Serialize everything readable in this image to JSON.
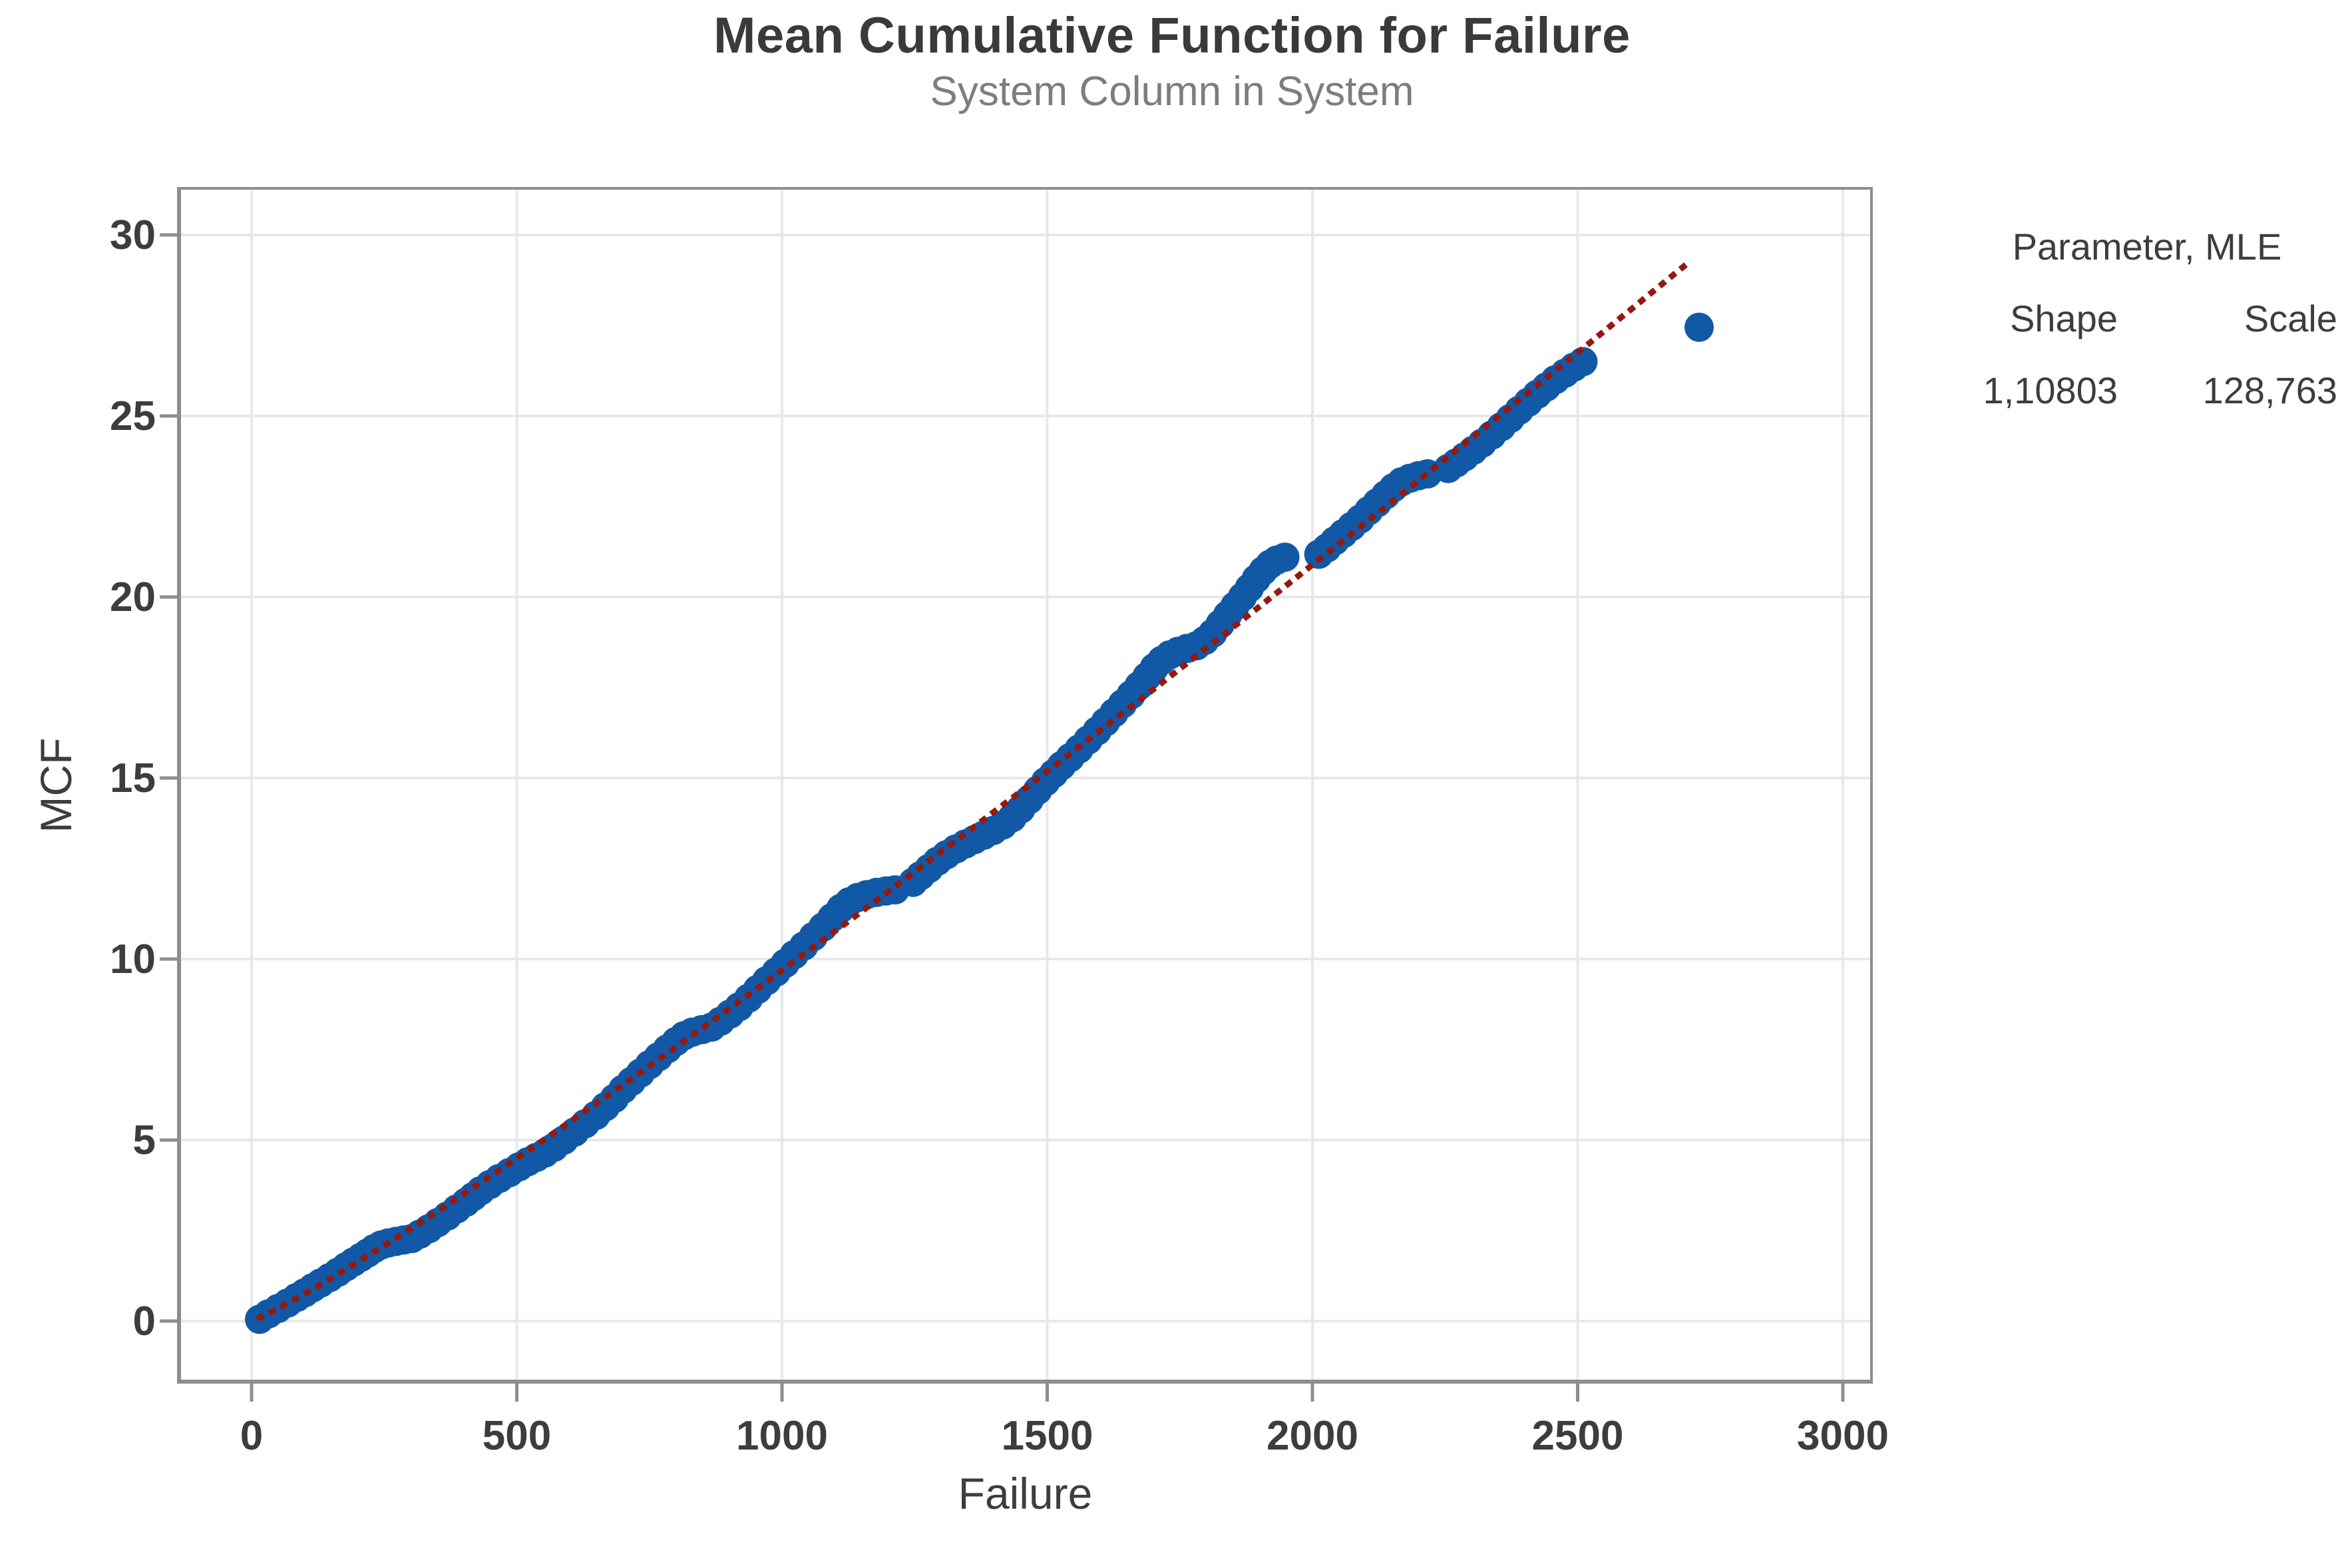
{
  "figure": {
    "title": "Mean Cumulative Function for Failure",
    "subtitle": "System Column in System"
  },
  "chart_data": {
    "type": "scatter",
    "title": "Mean Cumulative Function for Failure",
    "subtitle": "System Column in System",
    "xlabel": "Failure",
    "ylabel": "MCF",
    "xlim": [
      0,
      3000
    ],
    "ylim": [
      0,
      30
    ],
    "x_ticks": [
      0,
      500,
      1000,
      1500,
      2000,
      2500,
      3000
    ],
    "y_ticks": [
      0,
      5,
      10,
      15,
      20,
      25,
      30
    ],
    "grid": true,
    "colors": {
      "points": "#1159a6",
      "fit_line": "#941910",
      "axis": "#8e8e8e",
      "gridline": "#e8e8e8",
      "tick_text": "#3d3d3d"
    },
    "series": [
      {
        "name": "empirical-mcf-points",
        "type": "points",
        "color": "#1159a6",
        "marker_radius": 22,
        "points": [
          [
            15,
            0.05
          ],
          [
            32,
            0.2
          ],
          [
            50,
            0.35
          ],
          [
            68,
            0.5
          ],
          [
            85,
            0.65
          ],
          [
            100,
            0.78
          ],
          [
            115,
            0.92
          ],
          [
            130,
            1.05
          ],
          [
            147,
            1.2
          ],
          [
            163,
            1.35
          ],
          [
            178,
            1.5
          ],
          [
            192,
            1.63
          ],
          [
            206,
            1.76
          ],
          [
            219,
            1.88
          ],
          [
            231,
            2.0
          ],
          [
            244,
            2.1
          ],
          [
            258,
            2.16
          ],
          [
            272,
            2.2
          ],
          [
            287,
            2.24
          ],
          [
            302,
            2.28
          ],
          [
            317,
            2.4
          ],
          [
            334,
            2.55
          ],
          [
            351,
            2.72
          ],
          [
            369,
            2.9
          ],
          [
            387,
            3.1
          ],
          [
            404,
            3.28
          ],
          [
            418,
            3.44
          ],
          [
            432,
            3.6
          ],
          [
            449,
            3.77
          ],
          [
            467,
            3.94
          ],
          [
            486,
            4.1
          ],
          [
            504,
            4.26
          ],
          [
            521,
            4.4
          ],
          [
            537,
            4.52
          ],
          [
            553,
            4.64
          ],
          [
            570,
            4.8
          ],
          [
            589,
            5.0
          ],
          [
            609,
            5.22
          ],
          [
            629,
            5.45
          ],
          [
            649,
            5.68
          ],
          [
            667,
            5.92
          ],
          [
            684,
            6.15
          ],
          [
            700,
            6.4
          ],
          [
            716,
            6.62
          ],
          [
            733,
            6.85
          ],
          [
            750,
            7.08
          ],
          [
            767,
            7.3
          ],
          [
            784,
            7.52
          ],
          [
            800,
            7.72
          ],
          [
            815,
            7.88
          ],
          [
            831,
            7.98
          ],
          [
            849,
            8.05
          ],
          [
            867,
            8.12
          ],
          [
            884,
            8.28
          ],
          [
            902,
            8.48
          ],
          [
            919,
            8.68
          ],
          [
            937,
            8.92
          ],
          [
            954,
            9.16
          ],
          [
            971,
            9.4
          ],
          [
            989,
            9.64
          ],
          [
            1006,
            9.88
          ],
          [
            1023,
            10.12
          ],
          [
            1041,
            10.36
          ],
          [
            1059,
            10.62
          ],
          [
            1077,
            10.88
          ],
          [
            1094,
            11.14
          ],
          [
            1111,
            11.4
          ],
          [
            1127,
            11.58
          ],
          [
            1143,
            11.7
          ],
          [
            1160,
            11.78
          ],
          [
            1178,
            11.84
          ],
          [
            1196,
            11.88
          ],
          [
            1213,
            11.91
          ],
          [
            1247,
            12.12
          ],
          [
            1261,
            12.3
          ],
          [
            1277,
            12.5
          ],
          [
            1293,
            12.7
          ],
          [
            1310,
            12.88
          ],
          [
            1328,
            13.04
          ],
          [
            1346,
            13.18
          ],
          [
            1363,
            13.3
          ],
          [
            1380,
            13.42
          ],
          [
            1398,
            13.55
          ],
          [
            1416,
            13.7
          ],
          [
            1434,
            13.9
          ],
          [
            1450,
            14.14
          ],
          [
            1466,
            14.4
          ],
          [
            1482,
            14.66
          ],
          [
            1497,
            14.9
          ],
          [
            1512,
            15.12
          ],
          [
            1527,
            15.34
          ],
          [
            1543,
            15.56
          ],
          [
            1560,
            15.8
          ],
          [
            1577,
            16.05
          ],
          [
            1594,
            16.3
          ],
          [
            1610,
            16.55
          ],
          [
            1626,
            16.8
          ],
          [
            1642,
            17.05
          ],
          [
            1658,
            17.3
          ],
          [
            1673,
            17.55
          ],
          [
            1688,
            17.8
          ],
          [
            1702,
            18.05
          ],
          [
            1716,
            18.25
          ],
          [
            1731,
            18.4
          ],
          [
            1747,
            18.5
          ],
          [
            1764,
            18.58
          ],
          [
            1781,
            18.65
          ],
          [
            1797,
            18.8
          ],
          [
            1812,
            19.0
          ],
          [
            1826,
            19.25
          ],
          [
            1840,
            19.5
          ],
          [
            1854,
            19.75
          ],
          [
            1868,
            20.0
          ],
          [
            1881,
            20.25
          ],
          [
            1894,
            20.5
          ],
          [
            1907,
            20.72
          ],
          [
            1920,
            20.9
          ],
          [
            1933,
            21.02
          ],
          [
            1948,
            21.1
          ],
          [
            2012,
            21.18
          ],
          [
            2027,
            21.35
          ],
          [
            2042,
            21.55
          ],
          [
            2058,
            21.75
          ],
          [
            2074,
            21.95
          ],
          [
            2090,
            22.15
          ],
          [
            2106,
            22.38
          ],
          [
            2122,
            22.6
          ],
          [
            2138,
            22.82
          ],
          [
            2153,
            23.02
          ],
          [
            2168,
            23.18
          ],
          [
            2184,
            23.28
          ],
          [
            2200,
            23.35
          ],
          [
            2217,
            23.4
          ],
          [
            2256,
            23.55
          ],
          [
            2271,
            23.7
          ],
          [
            2287,
            23.87
          ],
          [
            2303,
            24.05
          ],
          [
            2320,
            24.25
          ],
          [
            2338,
            24.47
          ],
          [
            2356,
            24.7
          ],
          [
            2373,
            24.93
          ],
          [
            2390,
            25.16
          ],
          [
            2407,
            25.38
          ],
          [
            2424,
            25.6
          ],
          [
            2441,
            25.8
          ],
          [
            2458,
            26.0
          ],
          [
            2476,
            26.18
          ],
          [
            2493,
            26.35
          ],
          [
            2510,
            26.5
          ],
          [
            2729,
            27.45
          ]
        ]
      },
      {
        "name": "weibull-mle-fit",
        "type": "power_curve",
        "color": "#941910",
        "shape": 1.10803,
        "scale": 128.763,
        "t_range": [
          10,
          2713
        ],
        "dashed": true
      }
    ],
    "legend": {
      "header": "Parameter, MLE",
      "columns": [
        "Shape",
        "Scale"
      ],
      "values": [
        "1,10803",
        "128,763"
      ],
      "position": "right-top"
    }
  }
}
